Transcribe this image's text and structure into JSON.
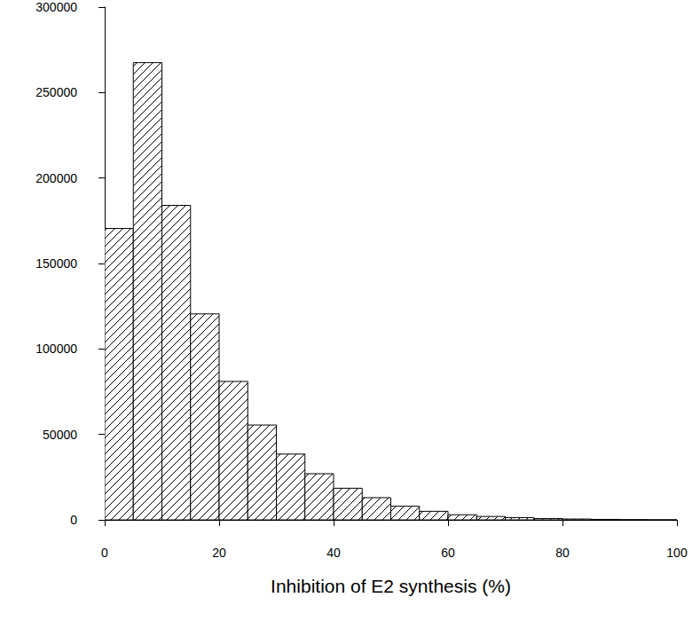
{
  "chart_data": {
    "type": "histogram",
    "x_label": "Inhibition of E2 synthesis (%)",
    "bins": [
      0,
      5,
      10,
      15,
      20,
      25,
      30,
      35,
      40,
      45,
      50,
      55,
      60,
      65,
      70,
      75,
      80,
      85,
      90,
      95,
      100
    ],
    "values": [
      170500,
      267500,
      184000,
      120500,
      81000,
      55500,
      38500,
      27000,
      18500,
      13000,
      8000,
      5000,
      3000,
      2000,
      1300,
      800,
      500,
      300,
      150,
      50
    ],
    "color": "#000000",
    "xlim": [
      0,
      100
    ],
    "xticks": [
      0,
      20,
      40,
      60,
      80,
      100
    ],
    "ylim": [
      0,
      300000
    ],
    "yticks": [
      0,
      50000,
      100000,
      150000,
      200000,
      250000,
      300000
    ],
    "grid": false
  }
}
